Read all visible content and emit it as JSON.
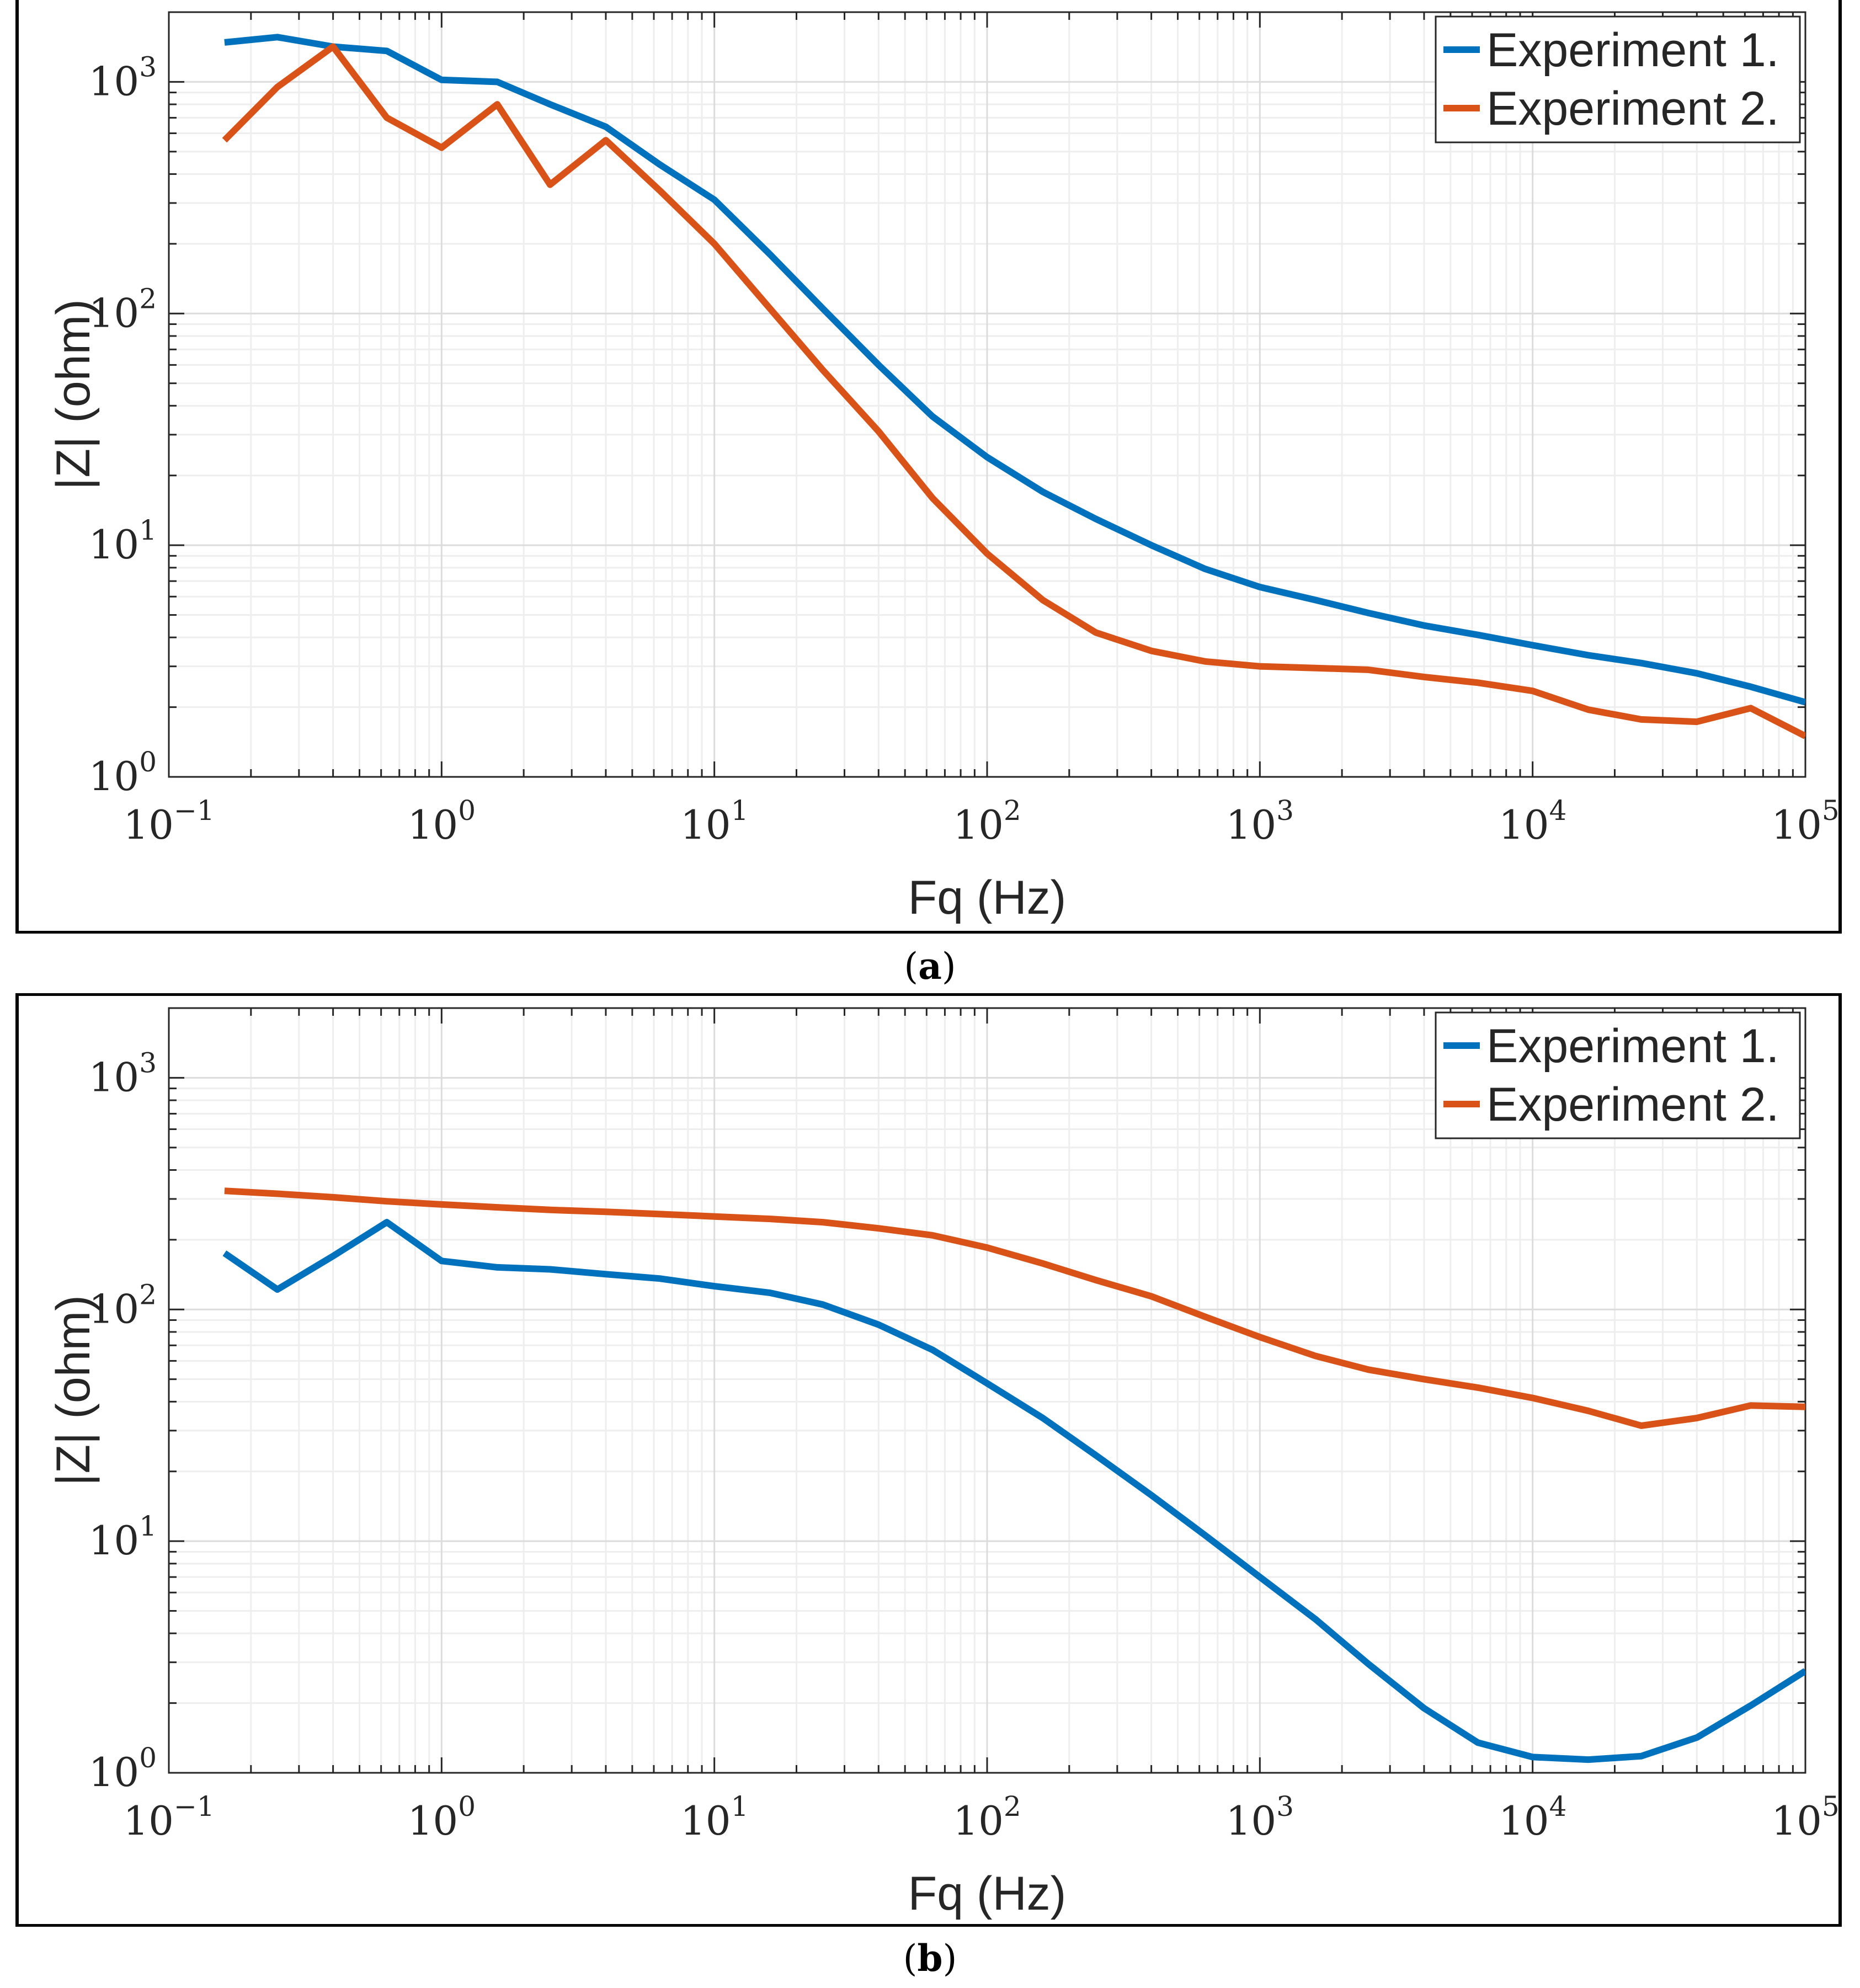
{
  "chart_data": [
    {
      "type": "line",
      "panel_label": "a",
      "xlabel": "Fq (Hz)",
      "ylabel": "|Z| (ohm)",
      "xscale": "log",
      "yscale": "log",
      "xlim": [
        0.1,
        100000
      ],
      "ylim": [
        1,
        2000
      ],
      "x_ticks": [
        {
          "base": "10",
          "exp": "−1"
        },
        {
          "base": "10",
          "exp": "0"
        },
        {
          "base": "10",
          "exp": "1"
        },
        {
          "base": "10",
          "exp": "2"
        },
        {
          "base": "10",
          "exp": "3"
        },
        {
          "base": "10",
          "exp": "4"
        },
        {
          "base": "10",
          "exp": "5"
        }
      ],
      "y_ticks": [
        {
          "base": "10",
          "exp": "0"
        },
        {
          "base": "10",
          "exp": "1"
        },
        {
          "base": "10",
          "exp": "2"
        },
        {
          "base": "10",
          "exp": "3"
        }
      ],
      "grid": true,
      "legend_position": "top-right",
      "x": [
        0.16,
        0.25,
        0.4,
        0.63,
        1,
        1.6,
        2.5,
        4,
        6.3,
        10,
        16,
        25,
        40,
        63,
        100,
        160,
        250,
        400,
        630,
        1000,
        1600,
        2500,
        4000,
        6300,
        10000,
        16000,
        25000,
        40000,
        63000,
        100000
      ],
      "series": [
        {
          "name": "Experiment 1.",
          "color": "#0072BD",
          "values": [
            1480,
            1560,
            1420,
            1360,
            1020,
            1000,
            800,
            640,
            440,
            310,
            180,
            105,
            60,
            36,
            24,
            17,
            13,
            10,
            7.9,
            6.6,
            5.8,
            5.1,
            4.5,
            4.1,
            3.7,
            3.35,
            3.1,
            2.8,
            2.45,
            2.1
          ]
        },
        {
          "name": "Experiment 2.",
          "color": "#D95319",
          "values": [
            560,
            950,
            1420,
            700,
            520,
            800,
            360,
            560,
            340,
            200,
            105,
            57,
            31,
            16,
            9.2,
            5.8,
            4.2,
            3.5,
            3.15,
            3.0,
            2.95,
            2.9,
            2.7,
            2.55,
            2.35,
            1.95,
            1.77,
            1.73,
            1.98,
            1.5
          ]
        }
      ]
    },
    {
      "type": "line",
      "panel_label": "b",
      "xlabel": "Fq (Hz)",
      "ylabel": "|Z| (ohm)",
      "xscale": "log",
      "yscale": "log",
      "xlim": [
        0.1,
        100000
      ],
      "ylim": [
        1,
        2000
      ],
      "x_ticks": [
        {
          "base": "10",
          "exp": "−1"
        },
        {
          "base": "10",
          "exp": "0"
        },
        {
          "base": "10",
          "exp": "1"
        },
        {
          "base": "10",
          "exp": "2"
        },
        {
          "base": "10",
          "exp": "3"
        },
        {
          "base": "10",
          "exp": "4"
        },
        {
          "base": "10",
          "exp": "5"
        }
      ],
      "y_ticks": [
        {
          "base": "10",
          "exp": "0"
        },
        {
          "base": "10",
          "exp": "1"
        },
        {
          "base": "10",
          "exp": "2"
        },
        {
          "base": "10",
          "exp": "3"
        }
      ],
      "grid": true,
      "legend_position": "top-right",
      "x": [
        0.16,
        0.25,
        0.4,
        0.63,
        1,
        1.6,
        2.5,
        4,
        6.3,
        10,
        16,
        25,
        40,
        63,
        100,
        160,
        250,
        400,
        630,
        1000,
        1600,
        2500,
        4000,
        6300,
        10000,
        16000,
        25000,
        40000,
        63000,
        100000
      ],
      "series": [
        {
          "name": "Experiment 1.",
          "color": "#0072BD",
          "values": [
            175,
            122,
            170,
            238,
            162,
            152,
            149,
            142,
            136,
            126,
            118,
            105,
            86,
            67,
            48,
            34,
            23.5,
            15.8,
            10.6,
            7.0,
            4.6,
            2.95,
            1.9,
            1.35,
            1.17,
            1.14,
            1.18,
            1.42,
            1.95,
            2.75
          ]
        },
        {
          "name": "Experiment 2.",
          "color": "#D95319",
          "values": [
            325,
            316,
            305,
            293,
            284,
            276,
            269,
            264,
            258,
            252,
            246,
            238,
            224,
            209,
            185,
            158,
            134,
            114,
            93,
            76,
            63,
            55,
            50,
            46,
            41.5,
            36.5,
            31.5,
            34,
            38.5,
            38
          ]
        }
      ]
    }
  ]
}
